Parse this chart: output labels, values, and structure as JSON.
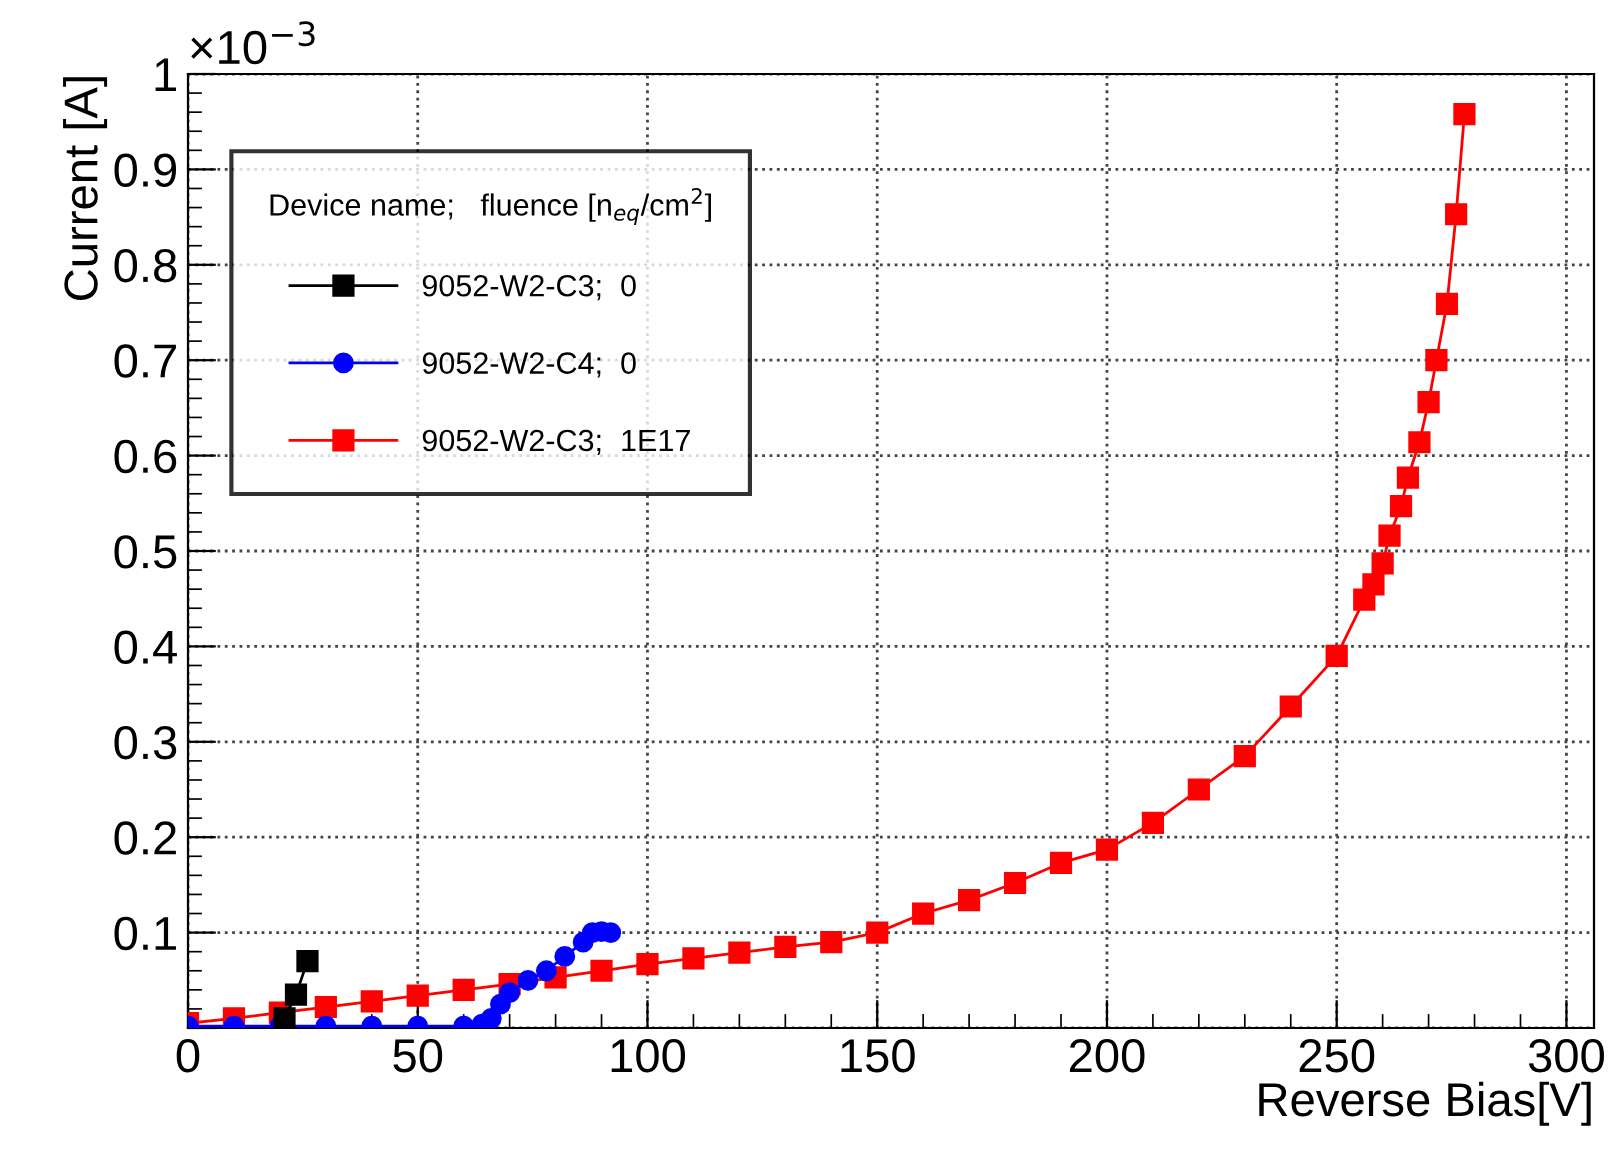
{
  "chart_data": {
    "type": "line",
    "xlabel": "Reverse Bias[V]",
    "ylabel": "Current [A]",
    "legend_title": "Device name;   fluence [n$_{eq}$/cm$^{2}$]",
    "annotations": [
      "×10$^{−3}$"
    ],
    "xlim": [
      0,
      306
    ],
    "xticks": [
      0,
      50,
      100,
      150,
      200,
      250,
      300
    ],
    "ylim": [
      0,
      1
    ],
    "yticks": [
      {
        "value": 0,
        "label": null
      },
      0.1,
      0.2,
      0.3,
      0.4,
      0.5,
      0.6,
      0.7,
      0.8,
      0.9,
      1
    ],
    "grid": true,
    "legend": "top left",
    "line_style": "solid",
    "series": [
      {
        "name": "9052-W2-C3;  0",
        "color": "#000000",
        "marker": "square",
        "x": [
          21,
          23.5,
          26
        ],
        "values": [
          0.01,
          0.035,
          0.07
        ]
      },
      {
        "name": "9052-W2-C4;  0",
        "color": "#0000ff",
        "marker": "circle",
        "x": [
          0,
          10,
          20,
          30,
          40,
          50,
          60,
          64,
          66,
          68,
          70,
          74,
          78,
          82,
          86,
          88,
          90,
          92
        ],
        "values": [
          0.002,
          0.002,
          0.002,
          0.002,
          0.002,
          0.002,
          0.002,
          0.004,
          0.01,
          0.025,
          0.037,
          0.05,
          0.06,
          0.075,
          0.09,
          0.1,
          0.101,
          0.1
        ]
      },
      {
        "name": "9052-W2-C3;  1E17",
        "color": "#ff0000",
        "marker": "square",
        "x": [
          0,
          10,
          20,
          30,
          40,
          50,
          60,
          70,
          80,
          90,
          100,
          110,
          120,
          130,
          140,
          150,
          160,
          170,
          180,
          190,
          200,
          210,
          220,
          230,
          240,
          250,
          256,
          258,
          260,
          261.5,
          264,
          265.5,
          268,
          270,
          271.7,
          274,
          276,
          277.8
        ],
        "values": [
          0.005,
          0.01,
          0.016,
          0.022,
          0.028,
          0.034,
          0.04,
          0.046,
          0.053,
          0.06,
          0.067,
          0.073,
          0.079,
          0.085,
          0.09,
          0.1,
          0.12,
          0.134,
          0.152,
          0.173,
          0.187,
          0.215,
          0.25,
          0.285,
          0.337,
          0.39,
          0.449,
          0.465,
          0.487,
          0.516,
          0.547,
          0.577,
          0.614,
          0.656,
          0.7,
          0.759,
          0.853,
          0.958
        ]
      }
    ]
  }
}
